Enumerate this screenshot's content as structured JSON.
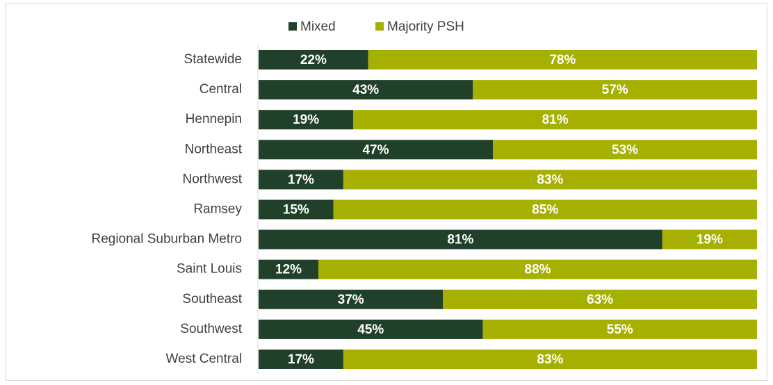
{
  "chart_data": {
    "type": "stacked-bar",
    "categories": [
      "Statewide",
      "Central",
      "Hennepin",
      "Northeast",
      "Northwest",
      "Ramsey",
      "Regional Suburban Metro",
      "Saint Louis",
      "Southeast",
      "Southwest",
      "West Central"
    ],
    "series": [
      {
        "name": "Mixed",
        "color": "#20402a",
        "values": [
          22,
          43,
          19,
          47,
          17,
          15,
          81,
          12,
          37,
          45,
          17
        ],
        "value_labels": [
          "22%",
          "43%",
          "19%",
          "47%",
          "17%",
          "15%",
          "81%",
          "12%",
          "37%",
          "45%",
          "17%"
        ]
      },
      {
        "name": "Majority PSH",
        "color": "#a6b000",
        "values": [
          78,
          57,
          81,
          53,
          83,
          85,
          19,
          88,
          63,
          55,
          83
        ],
        "value_labels": [
          "78%",
          "57%",
          "81%",
          "53%",
          "83%",
          "85%",
          "19%",
          "88%",
          "63%",
          "55%",
          "83%"
        ]
      }
    ],
    "xlim": [
      0,
      100
    ]
  }
}
